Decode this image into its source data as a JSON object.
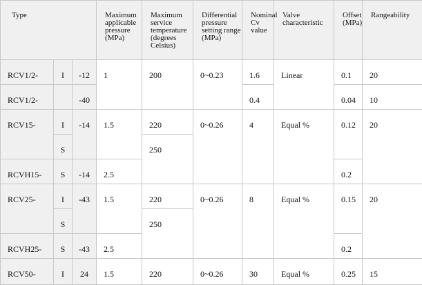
{
  "headers": {
    "type": "Type",
    "max_pressure": "Maximum applicable pressure (MPa)",
    "max_temp": "Maximum service temperature (degrees Celsius)",
    "diff_pressure": "Differential pressure setting range (MPa)",
    "cv": "Nominal Cv value",
    "valve_char": "Valve characteristic",
    "offset": "Offset (MPa)",
    "rangeability": "Rangeability"
  },
  "rows": [
    {
      "model": "RCV1/2-",
      "letter": "I",
      "suffix": "-12",
      "pressure": "1",
      "temp": "200",
      "diff": "0~0.23",
      "cv": "1.6",
      "char": "Linear",
      "offset": "0.1",
      "range": "20"
    },
    {
      "model": "RCV1/2-",
      "letter": "",
      "suffix": "-40",
      "cv": "0.4",
      "offset": "0.04",
      "range": "10"
    },
    {
      "model": "RCV15-",
      "letter": "I",
      "suffix": "-14",
      "pressure": "1.5",
      "temp": "220",
      "diff": "0~0.26",
      "cv": "4",
      "char": "Equal %",
      "offset": "0.12",
      "range": "20"
    },
    {
      "letter": "S",
      "temp": "250"
    },
    {
      "model": "RCVH15-",
      "letter": "S",
      "suffix": "-14",
      "pressure": "2.5",
      "offset": "0.2"
    },
    {
      "model": "RCV25-",
      "letter": "I",
      "suffix": "-43",
      "pressure": "1.5",
      "temp": "220",
      "diff": "0~0.26",
      "cv": "8",
      "char": "Equal %",
      "offset": "0.15",
      "range": "20"
    },
    {
      "letter": "S",
      "temp": "250"
    },
    {
      "model": "RCVH25-",
      "letter": "S",
      "suffix": "-43",
      "pressure": "2.5",
      "offset": "0.2"
    },
    {
      "model": "RCV50-",
      "letter": "I",
      "suffix": "24",
      "pressure": "1.5",
      "temp": "220",
      "diff": "0~0.26",
      "cv": "30",
      "char": "Equal %",
      "offset": "0.25",
      "range": "15"
    }
  ]
}
